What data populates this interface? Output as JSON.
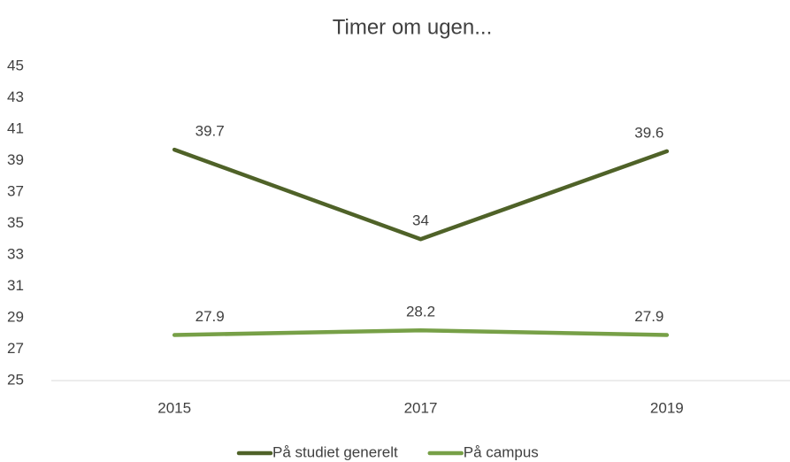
{
  "chart_data": {
    "type": "line",
    "title": "Timer om ugen...",
    "categories": [
      "2015",
      "2017",
      "2019"
    ],
    "series": [
      {
        "name": "På studiet generelt",
        "color": "#4f6228",
        "values": [
          39.7,
          34,
          39.6
        ]
      },
      {
        "name": "På campus",
        "color": "#77a047",
        "values": [
          27.9,
          28.2,
          27.9
        ]
      }
    ],
    "ylim": [
      25,
      45
    ],
    "yticks": [
      25,
      27,
      29,
      31,
      33,
      35,
      37,
      39,
      41,
      43,
      45
    ],
    "grid": false,
    "legend": "bottom"
  }
}
